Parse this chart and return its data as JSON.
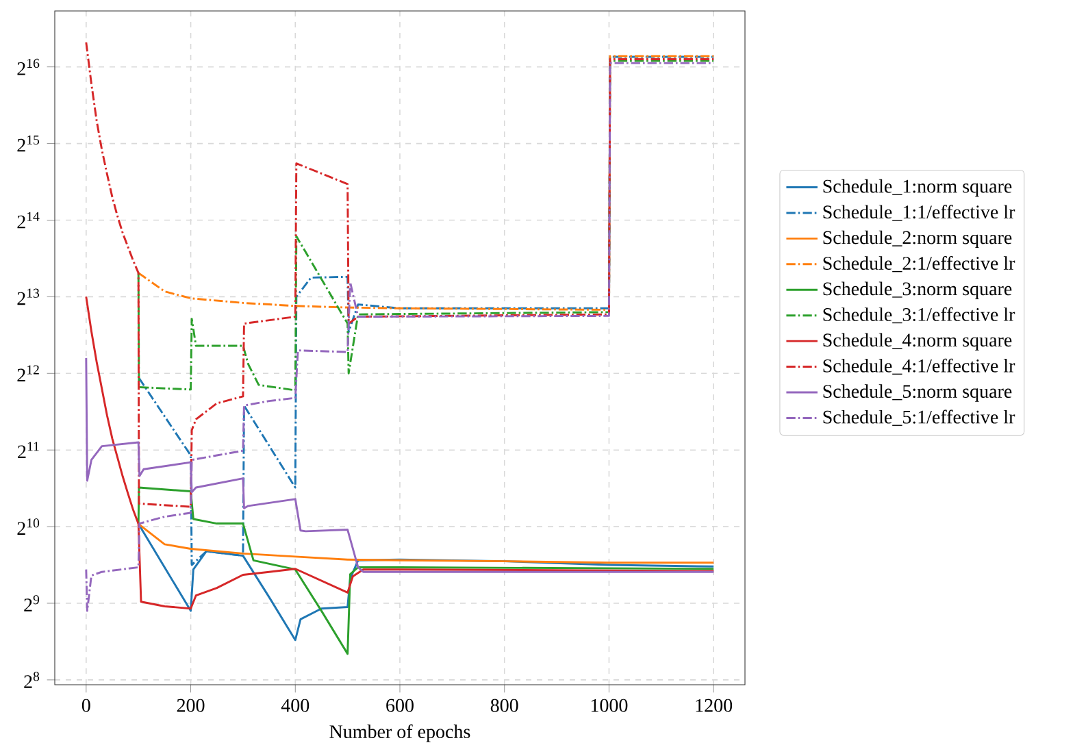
{
  "chart_data": {
    "type": "line",
    "xlabel": "Number of epochs",
    "log": "y",
    "grid": true,
    "legend": "right",
    "xlim": [
      -60,
      1260
    ],
    "ylim": [
      245,
      108700
    ],
    "xticks": [
      0,
      200,
      400,
      600,
      800,
      1000,
      1200
    ],
    "yticks": [
      {
        "value": 256,
        "label": "2$^{8}$"
      },
      {
        "value": 512,
        "label": "2$^{9}$"
      },
      {
        "value": 1024,
        "label": "2$^{10}$"
      },
      {
        "value": 2048,
        "label": "2$^{11}$"
      },
      {
        "value": 4096,
        "label": "2$^{12}$"
      },
      {
        "value": 8192,
        "label": "2$^{13}$"
      },
      {
        "value": 16384,
        "label": "2$^{14}$"
      },
      {
        "value": 32768,
        "label": "2$^{15}$"
      },
      {
        "value": 65536,
        "label": "2$^{16}$"
      }
    ],
    "series": [
      {
        "name": "Schedule_1:norm square",
        "color": "#1f77b4",
        "line_style": "solid",
        "x": [
          100,
          150,
          200,
          205,
          230,
          300,
          350,
          400,
          410,
          450,
          500,
          505,
          520,
          600,
          800,
          1000,
          1200
        ],
        "values": [
          1050,
          709,
          478,
          695,
          820,
          787,
          541,
          367,
          443,
          488,
          495,
          639,
          755,
          760,
          749,
          724,
          714
        ]
      },
      {
        "name": "Schedule_1:1/effective lr",
        "color": "#1f77b4",
        "line_style": "dashdot",
        "x": [
          101,
          200,
          202,
          230,
          300,
          302,
          400,
          402,
          410,
          430,
          500,
          502,
          520,
          600,
          1000,
          1002,
          1200
        ],
        "values": [
          3928,
          1951,
          724,
          820,
          787,
          3061,
          1458,
          8192,
          8600,
          9742,
          9810,
          5956,
          7643,
          7380,
          7380,
          71760,
          71760
        ]
      },
      {
        "name": "Schedule_2:norm square",
        "color": "#ff7f0e",
        "line_style": "solid",
        "x": [
          100,
          150,
          200,
          300,
          400,
          500,
          600,
          800,
          1000,
          1200
        ],
        "values": [
          1050,
          873,
          838,
          803,
          781,
          760,
          755,
          749,
          739,
          739
        ]
      },
      {
        "name": "Schedule_2:1/effective lr",
        "color": "#ff7f0e",
        "line_style": "dashdot",
        "x": [
          100,
          150,
          200,
          300,
          400,
          500,
          600,
          1000,
          1002,
          1200
        ],
        "values": [
          10160,
          8600,
          8077,
          7750,
          7540,
          7434,
          7380,
          7280,
          72220,
          72220
        ]
      },
      {
        "name": "Schedule_3:norm square",
        "color": "#2ca02c",
        "line_style": "solid",
        "x": [
          100,
          101,
          200,
          205,
          250,
          300,
          320,
          400,
          450,
          500,
          505,
          520,
          600,
          1200
        ],
        "values": [
          1050,
          1458,
          1409,
          1097,
          1053,
          1053,
          755,
          695,
          478,
          324,
          666,
          709,
          709,
          699
        ]
      },
      {
        "name": "Schedule_3:1/effective lr",
        "color": "#2ca02c",
        "line_style": "dashdot",
        "x": [
          100,
          101,
          200,
          202,
          210,
          300,
          310,
          330,
          400,
          402,
          500,
          502,
          520,
          1000,
          1002,
          1200
        ],
        "values": [
          10160,
          3615,
          3540,
          6701,
          5260,
          5260,
          4452,
          3690,
          3515,
          14160,
          6427,
          4096,
          6984,
          7130,
          69280,
          69280
        ]
      },
      {
        "name": "Schedule_4:norm square",
        "color": "#d62728",
        "line_style": "solid",
        "x": [
          0,
          10,
          20,
          30,
          40,
          50,
          60,
          70,
          80,
          90,
          100,
          105,
          150,
          200,
          210,
          250,
          300,
          350,
          400,
          500,
          510,
          530,
          600,
          1200
        ],
        "values": [
          8192,
          6000,
          4550,
          3570,
          2800,
          2270,
          1910,
          1610,
          1380,
          1190,
          1050,
          519,
          498,
          488,
          549,
          588,
          662,
          680,
          699,
          564,
          653,
          695,
          695,
          685
        ]
      },
      {
        "name": "Schedule_4:1/effective lr",
        "color": "#d62728",
        "line_style": "dashdot",
        "x": [
          0,
          10,
          20,
          30,
          40,
          50,
          60,
          70,
          80,
          90,
          100,
          101,
          200,
          202,
          210,
          250,
          300,
          302,
          400,
          402,
          500,
          502,
          520,
          1000,
          1002,
          1200
        ],
        "values": [
          81800,
          56270,
          40340,
          31000,
          24840,
          20170,
          16960,
          14560,
          12850,
          11350,
          10160,
          1261,
          1226,
          2451,
          2703,
          3125,
          3327,
          6427,
          6840,
          27370,
          22700,
          6427,
          6840,
          6984,
          70240,
          70240
        ]
      },
      {
        "name": "Schedule_5:norm square",
        "color": "#9467bd",
        "line_style": "solid",
        "x": [
          0,
          2,
          10,
          30,
          100,
          102,
          110,
          200,
          202,
          210,
          300,
          302,
          310,
          400,
          410,
          420,
          500,
          520,
          530,
          600,
          1200
        ],
        "values": [
          4706,
          1552,
          1872,
          2120,
          2195,
          1618,
          1722,
          1833,
          1399,
          1458,
          1585,
          1209,
          1235,
          1314,
          989,
          982,
          996,
          709,
          680,
          680,
          680
        ]
      },
      {
        "name": "Schedule_5:1/effective lr",
        "color": "#9467bd",
        "line_style": "dashdot",
        "x": [
          0,
          2,
          10,
          30,
          100,
          102,
          150,
          200,
          202,
          250,
          300,
          302,
          350,
          400,
          405,
          500,
          505,
          520,
          1000,
          1002,
          1200
        ],
        "values": [
          695,
          478,
          658,
          680,
          709,
          1053,
          1120,
          1160,
          1872,
          1951,
          2034,
          3061,
          3191,
          3281,
          5042,
          4972,
          9345,
          6840,
          6889,
          67830,
          67830
        ]
      }
    ]
  }
}
